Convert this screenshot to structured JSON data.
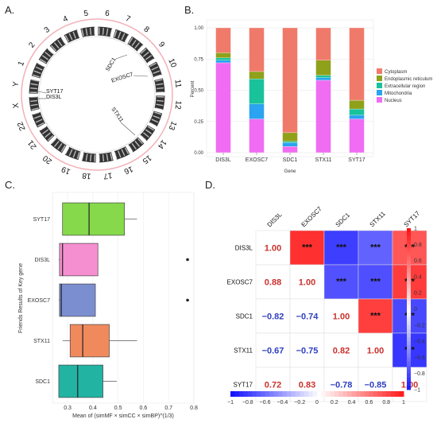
{
  "panels": {
    "a": "A.",
    "b": "B.",
    "c": "C.",
    "d": "D."
  },
  "chart_data": [
    {
      "type": "circos",
      "chromosomes": [
        "1",
        "2",
        "3",
        "4",
        "5",
        "6",
        "7",
        "8",
        "9",
        "10",
        "11",
        "12",
        "13",
        "14",
        "15",
        "16",
        "17",
        "18",
        "19",
        "20",
        "21",
        "22",
        "X",
        "Y"
      ],
      "genes": [
        {
          "name": "SDC1",
          "chrom": "2"
        },
        {
          "name": "EXOSC7",
          "chrom": "3"
        },
        {
          "name": "STX11",
          "chrom": "6"
        },
        {
          "name": "SYT17",
          "chrom": "16"
        },
        {
          "name": "DIS3L",
          "chrom": "15"
        }
      ]
    },
    {
      "type": "bar",
      "stacked": true,
      "categories": [
        "DIS3L",
        "EXOSC7",
        "SDC1",
        "STX11",
        "SYT17"
      ],
      "xlabel": "Gene",
      "ylabel": "Percent",
      "ylim": [
        0,
        1
      ],
      "yticks": [
        "0.00",
        "0.25",
        "0.50",
        "0.75",
        "1.00"
      ],
      "series": [
        {
          "name": "Nucleus",
          "color": "#f06cf2",
          "values": [
            0.72,
            0.27,
            0.05,
            0.58,
            0.27
          ]
        },
        {
          "name": "Mitochondria",
          "color": "#2aa3f0",
          "values": [
            0.02,
            0.12,
            0.03,
            0.02,
            0.03
          ]
        },
        {
          "name": "Extracellular region",
          "color": "#1ac29c",
          "values": [
            0.02,
            0.2,
            0.01,
            0.02,
            0.05
          ]
        },
        {
          "name": "Endoplasmic reticulum",
          "color": "#8fa11a",
          "values": [
            0.04,
            0.06,
            0.07,
            0.12,
            0.07
          ]
        },
        {
          "name": "Cytoplasm",
          "color": "#f07a6a",
          "values": [
            0.2,
            0.35,
            0.84,
            0.26,
            0.58
          ]
        }
      ]
    },
    {
      "type": "boxplot",
      "xlabel": "Mean of (simMF × simCC × simBP)^(1/3)",
      "ylabel": "Friends Results of Key gene",
      "xlim": [
        0.24,
        0.8
      ],
      "xticks": [
        0.3,
        0.4,
        0.5,
        0.6,
        0.7,
        0.8
      ],
      "boxes": [
        {
          "gene": "SYT17",
          "color": "#86d94a",
          "min": 0.28,
          "q1": 0.28,
          "median": 0.385,
          "q3": 0.525,
          "max": 0.575,
          "outliers": []
        },
        {
          "gene": "DIS3L",
          "color": "#f58fd0",
          "min": 0.265,
          "q1": 0.268,
          "median": 0.28,
          "q3": 0.42,
          "max": 0.42,
          "outliers": [
            0.775
          ]
        },
        {
          "gene": "EXOSC7",
          "color": "#7b8fd0",
          "min": 0.265,
          "q1": 0.268,
          "median": 0.275,
          "q3": 0.41,
          "max": 0.41,
          "outliers": [
            0.775
          ]
        },
        {
          "gene": "STX11",
          "color": "#f08a5d",
          "min": 0.28,
          "q1": 0.31,
          "median": 0.36,
          "q3": 0.465,
          "max": 0.575,
          "outliers": []
        },
        {
          "gene": "SDC1",
          "color": "#22b3a3",
          "min": 0.265,
          "q1": 0.265,
          "median": 0.34,
          "q3": 0.44,
          "max": 0.495,
          "outliers": []
        }
      ]
    },
    {
      "type": "heatmap",
      "genes": [
        "DIS3L",
        "EXOSC7",
        "SDC1",
        "STX11",
        "SYT17"
      ],
      "values": [
        [
          1.0,
          0.88,
          -0.82,
          -0.67,
          0.72
        ],
        [
          0.88,
          1.0,
          -0.74,
          -0.75,
          0.83
        ],
        [
          -0.82,
          -0.74,
          1.0,
          0.82,
          -0.78
        ],
        [
          -0.67,
          -0.75,
          0.82,
          1.0,
          -0.85
        ],
        [
          0.72,
          0.83,
          -0.78,
          -0.85,
          1.0
        ]
      ],
      "lower_labels": [
        [
          "1.00"
        ],
        [
          "0.88",
          "1.00"
        ],
        [
          "−0.82",
          "−0.74",
          "1.00"
        ],
        [
          "−0.67",
          "−0.75",
          "0.82",
          "1.00"
        ],
        [
          "0.72",
          "0.83",
          "−0.78",
          "−0.85",
          "1.00"
        ]
      ],
      "significance": "***",
      "right_scale": [
        "1",
        "0.8",
        "0.6",
        "0.4",
        "0.2",
        "0",
        "−0.2",
        "−0.4",
        "−0.6",
        "−0.8",
        "−1"
      ],
      "bottom_scale": [
        "−1",
        "−0.8",
        "−0.6",
        "−0.4",
        "−0.2",
        "0",
        "0.2",
        "0.4",
        "0.6",
        "0.8",
        "1"
      ]
    }
  ]
}
